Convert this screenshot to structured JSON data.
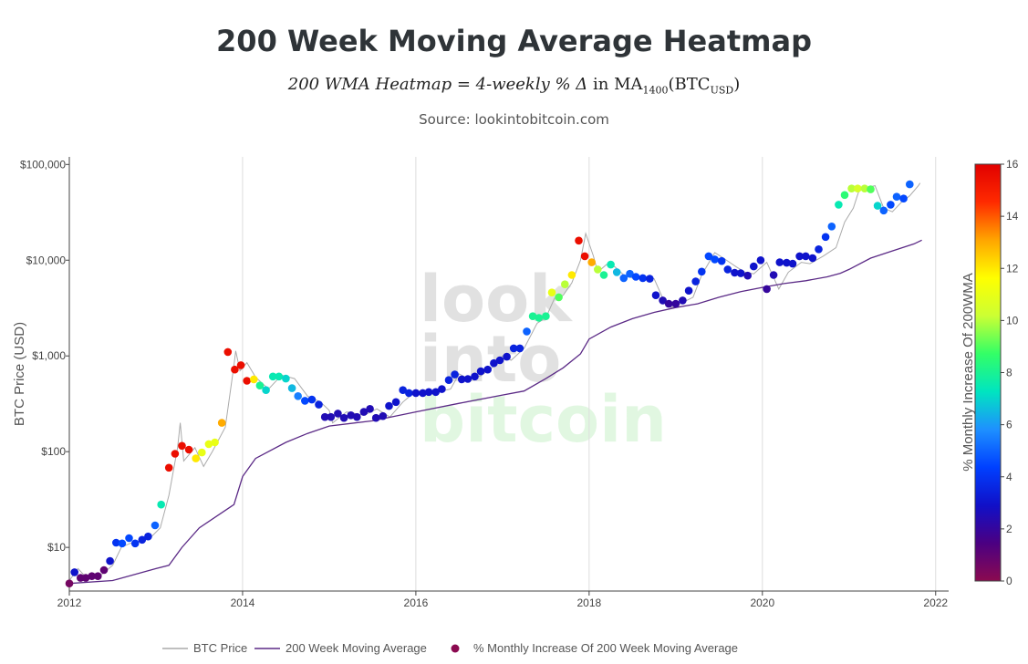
{
  "title": "200 Week Moving Average Heatmap",
  "formula": {
    "lhs": "200 WMA Heatmap",
    "eq": " = ",
    "rhs_italic": "4-weekly % Δ",
    "in_text": " in MA",
    "ma_sub": "1400",
    "paren_open": "(BTC",
    "btc_sub": "USD",
    "paren_close": ")"
  },
  "source": "Source: lookintobitcoin.com",
  "watermark": [
    "look",
    "into",
    "bitcoin"
  ],
  "chart_data": {
    "type": "scatter",
    "ylabel": "BTC Price (USD)",
    "y_scale": "log",
    "ylim": [
      3.5,
      120000
    ],
    "xlim": [
      2012.0,
      2022.15
    ],
    "x_ticks": [
      2012,
      2014,
      2016,
      2018,
      2020,
      2022
    ],
    "x_tick_labels": [
      "2012",
      "2014",
      "2016",
      "2018",
      "2020",
      "2022"
    ],
    "y_ticks": [
      10,
      100,
      1000,
      10000,
      100000
    ],
    "y_tick_labels": [
      "$10",
      "$100",
      "$1,000",
      "$10,000",
      "$100,000"
    ],
    "grid": "vertical",
    "colorbar": {
      "title": "% Monthly Increase Of 200WMA",
      "range": [
        0,
        16
      ],
      "ticks": [
        0,
        2,
        4,
        6,
        8,
        10,
        12,
        14,
        16
      ],
      "colors": [
        "#8b0a50",
        "#4b0082",
        "#1010c8",
        "#0040ff",
        "#1e90ff",
        "#00e5c0",
        "#33ff66",
        "#ccff33",
        "#ffff00",
        "#ffa500",
        "#ff2a00",
        "#e10000"
      ]
    },
    "legend": {
      "position": "bottom",
      "items": [
        {
          "name": "BTC Price",
          "color": "#aaaaaa",
          "kind": "line"
        },
        {
          "name": "200 Week Moving Average",
          "color": "#5b2a86",
          "kind": "line"
        },
        {
          "name": "% Monthly Increase Of 200 Week Moving Average",
          "color": "#8b0a50",
          "kind": "dot"
        }
      ]
    },
    "series": [
      {
        "name": "BTC Price",
        "color": "#aaaaaa",
        "points": [
          [
            2012.0,
            4.5
          ],
          [
            2012.1,
            6
          ],
          [
            2012.2,
            4.8
          ],
          [
            2012.35,
            5
          ],
          [
            2012.5,
            6.5
          ],
          [
            2012.6,
            10
          ],
          [
            2012.7,
            11
          ],
          [
            2012.8,
            11.5
          ],
          [
            2012.95,
            13
          ],
          [
            2013.05,
            16
          ],
          [
            2013.15,
            35
          ],
          [
            2013.25,
            110
          ],
          [
            2013.28,
            200
          ],
          [
            2013.32,
            80
          ],
          [
            2013.45,
            110
          ],
          [
            2013.55,
            70
          ],
          [
            2013.65,
            100
          ],
          [
            2013.8,
            180
          ],
          [
            2013.9,
            800
          ],
          [
            2013.92,
            1130
          ],
          [
            2013.97,
            700
          ],
          [
            2014.05,
            850
          ],
          [
            2014.15,
            600
          ],
          [
            2014.3,
            450
          ],
          [
            2014.45,
            630
          ],
          [
            2014.6,
            580
          ],
          [
            2014.75,
            380
          ],
          [
            2014.9,
            330
          ],
          [
            2015.0,
            270
          ],
          [
            2015.04,
            200
          ],
          [
            2015.2,
            260
          ],
          [
            2015.4,
            240
          ],
          [
            2015.55,
            280
          ],
          [
            2015.7,
            230
          ],
          [
            2015.85,
            330
          ],
          [
            2016.0,
            430
          ],
          [
            2016.2,
            410
          ],
          [
            2016.4,
            450
          ],
          [
            2016.5,
            650
          ],
          [
            2016.6,
            580
          ],
          [
            2016.75,
            620
          ],
          [
            2016.9,
            780
          ],
          [
            2017.0,
            1000
          ],
          [
            2017.1,
            900
          ],
          [
            2017.25,
            1200
          ],
          [
            2017.4,
            2200
          ],
          [
            2017.5,
            2500
          ],
          [
            2017.6,
            4000
          ],
          [
            2017.7,
            4300
          ],
          [
            2017.8,
            5800
          ],
          [
            2017.9,
            10000
          ],
          [
            2017.96,
            19000
          ],
          [
            2018.05,
            11000
          ],
          [
            2018.1,
            7500
          ],
          [
            2018.2,
            9000
          ],
          [
            2018.3,
            8500
          ],
          [
            2018.4,
            7000
          ],
          [
            2018.5,
            6500
          ],
          [
            2018.6,
            6800
          ],
          [
            2018.75,
            6400
          ],
          [
            2018.85,
            4000
          ],
          [
            2018.95,
            3200
          ],
          [
            2019.05,
            3500
          ],
          [
            2019.2,
            4100
          ],
          [
            2019.3,
            7000
          ],
          [
            2019.45,
            12000
          ],
          [
            2019.55,
            10500
          ],
          [
            2019.7,
            8500
          ],
          [
            2019.8,
            7500
          ],
          [
            2019.9,
            7200
          ],
          [
            2020.05,
            9500
          ],
          [
            2020.19,
            5000
          ],
          [
            2020.3,
            7500
          ],
          [
            2020.45,
            9500
          ],
          [
            2020.55,
            9200
          ],
          [
            2020.7,
            11000
          ],
          [
            2020.85,
            13500
          ],
          [
            2020.95,
            25000
          ],
          [
            2021.05,
            35000
          ],
          [
            2021.12,
            55000
          ],
          [
            2021.3,
            60000
          ],
          [
            2021.4,
            35000
          ],
          [
            2021.5,
            32000
          ],
          [
            2021.6,
            40000
          ],
          [
            2021.7,
            47000
          ],
          [
            2021.8,
            60000
          ],
          [
            2021.82,
            64000
          ]
        ]
      },
      {
        "name": "200 Week Moving Average",
        "color": "#5b2a86",
        "points": [
          [
            2012.0,
            4.2
          ],
          [
            2012.5,
            4.5
          ],
          [
            2013.0,
            6.0
          ],
          [
            2013.15,
            6.5
          ],
          [
            2013.3,
            10
          ],
          [
            2013.5,
            16
          ],
          [
            2013.9,
            28
          ],
          [
            2014.0,
            55
          ],
          [
            2014.15,
            85
          ],
          [
            2014.5,
            125
          ],
          [
            2014.75,
            155
          ],
          [
            2015.0,
            185
          ],
          [
            2015.5,
            210
          ],
          [
            2016.0,
            260
          ],
          [
            2016.5,
            320
          ],
          [
            2017.0,
            390
          ],
          [
            2017.25,
            430
          ],
          [
            2017.5,
            580
          ],
          [
            2017.7,
            750
          ],
          [
            2017.9,
            1050
          ],
          [
            2018.0,
            1500
          ],
          [
            2018.25,
            2000
          ],
          [
            2018.5,
            2450
          ],
          [
            2018.75,
            2850
          ],
          [
            2019.0,
            3200
          ],
          [
            2019.25,
            3500
          ],
          [
            2019.5,
            4100
          ],
          [
            2019.75,
            4700
          ],
          [
            2020.0,
            5200
          ],
          [
            2020.25,
            5700
          ],
          [
            2020.5,
            6100
          ],
          [
            2020.75,
            6700
          ],
          [
            2020.9,
            7300
          ],
          [
            2021.0,
            8000
          ],
          [
            2021.25,
            10500
          ],
          [
            2021.5,
            12500
          ],
          [
            2021.75,
            14800
          ],
          [
            2021.84,
            16200
          ]
        ]
      }
    ],
    "heat_points": [
      [
        2012.0,
        4.2,
        0.5
      ],
      [
        2012.06,
        5.5,
        3
      ],
      [
        2012.13,
        4.8,
        1
      ],
      [
        2012.19,
        4.8,
        1
      ],
      [
        2012.26,
        5,
        1
      ],
      [
        2012.33,
        5,
        1
      ],
      [
        2012.4,
        5.8,
        1
      ],
      [
        2012.47,
        7.2,
        3
      ],
      [
        2012.54,
        11.2,
        4
      ],
      [
        2012.61,
        11,
        4.5
      ],
      [
        2012.69,
        12.5,
        4.5
      ],
      [
        2012.76,
        11,
        4
      ],
      [
        2012.84,
        12,
        3.5
      ],
      [
        2012.91,
        13,
        3.5
      ],
      [
        2012.99,
        17,
        5
      ],
      [
        2013.06,
        28,
        7.5
      ],
      [
        2013.15,
        68,
        15.5
      ],
      [
        2013.22,
        95,
        15.5
      ],
      [
        2013.3,
        115,
        15.5
      ],
      [
        2013.38,
        105,
        15.5
      ],
      [
        2013.46,
        85,
        12
      ],
      [
        2013.53,
        98,
        11
      ],
      [
        2013.61,
        120,
        11
      ],
      [
        2013.68,
        125,
        11
      ],
      [
        2013.76,
        200,
        13
      ],
      [
        2013.83,
        1100,
        15.5
      ],
      [
        2013.91,
        720,
        15.5
      ],
      [
        2013.98,
        800,
        15.5
      ],
      [
        2014.05,
        550,
        15.5
      ],
      [
        2014.13,
        570,
        12
      ],
      [
        2014.2,
        490,
        8
      ],
      [
        2014.27,
        440,
        7
      ],
      [
        2014.35,
        610,
        7.5
      ],
      [
        2014.42,
        610,
        7.5
      ],
      [
        2014.5,
        580,
        7
      ],
      [
        2014.57,
        460,
        6.5
      ],
      [
        2014.64,
        380,
        5.5
      ],
      [
        2014.72,
        340,
        4.5
      ],
      [
        2014.8,
        350,
        4
      ],
      [
        2014.88,
        310,
        3.5
      ],
      [
        2014.95,
        230,
        2.5
      ],
      [
        2015.02,
        230,
        2.5
      ],
      [
        2015.1,
        250,
        2.5
      ],
      [
        2015.17,
        225,
        2.5
      ],
      [
        2015.25,
        240,
        2.5
      ],
      [
        2015.32,
        230,
        2.5
      ],
      [
        2015.4,
        260,
        2.5
      ],
      [
        2015.47,
        280,
        2.5
      ],
      [
        2015.54,
        225,
        2.5
      ],
      [
        2015.62,
        235,
        2.5
      ],
      [
        2015.69,
        300,
        3
      ],
      [
        2015.77,
        330,
        3
      ],
      [
        2015.85,
        440,
        3.5
      ],
      [
        2015.92,
        410,
        3.5
      ],
      [
        2016.0,
        410,
        3
      ],
      [
        2016.08,
        410,
        3
      ],
      [
        2016.15,
        420,
        3
      ],
      [
        2016.23,
        420,
        3
      ],
      [
        2016.3,
        450,
        3
      ],
      [
        2016.38,
        560,
        3.5
      ],
      [
        2016.45,
        640,
        3.5
      ],
      [
        2016.53,
        570,
        3
      ],
      [
        2016.6,
        575,
        3
      ],
      [
        2016.68,
        610,
        3
      ],
      [
        2016.75,
        690,
        3
      ],
      [
        2016.83,
        720,
        3
      ],
      [
        2016.9,
        840,
        3
      ],
      [
        2016.97,
        900,
        3
      ],
      [
        2017.05,
        980,
        3
      ],
      [
        2017.13,
        1200,
        3.5
      ],
      [
        2017.2,
        1200,
        3.5
      ],
      [
        2017.28,
        1800,
        5
      ],
      [
        2017.35,
        2600,
        8
      ],
      [
        2017.42,
        2500,
        8
      ],
      [
        2017.5,
        2600,
        8
      ],
      [
        2017.57,
        4600,
        11
      ],
      [
        2017.65,
        4100,
        9
      ],
      [
        2017.72,
        5600,
        10
      ],
      [
        2017.8,
        7000,
        12
      ],
      [
        2017.88,
        16000,
        15.5
      ],
      [
        2017.95,
        11000,
        15.5
      ],
      [
        2018.03,
        9500,
        13
      ],
      [
        2018.1,
        8000,
        10
      ],
      [
        2018.17,
        7000,
        8
      ],
      [
        2018.25,
        9000,
        7.5
      ],
      [
        2018.32,
        7500,
        6.5
      ],
      [
        2018.4,
        6500,
        5
      ],
      [
        2018.47,
        7200,
        5
      ],
      [
        2018.54,
        6700,
        4.5
      ],
      [
        2018.62,
        6500,
        4
      ],
      [
        2018.7,
        6400,
        3.5
      ],
      [
        2018.77,
        4300,
        3
      ],
      [
        2018.85,
        3800,
        2.5
      ],
      [
        2018.92,
        3500,
        2
      ],
      [
        2019.0,
        3500,
        2
      ],
      [
        2019.08,
        3800,
        2.5
      ],
      [
        2019.15,
        4800,
        3
      ],
      [
        2019.23,
        6000,
        3.5
      ],
      [
        2019.3,
        7600,
        4
      ],
      [
        2019.38,
        11000,
        4.5
      ],
      [
        2019.45,
        10200,
        4.5
      ],
      [
        2019.53,
        9800,
        4
      ],
      [
        2019.6,
        8000,
        3.5
      ],
      [
        2019.68,
        7400,
        3
      ],
      [
        2019.75,
        7300,
        3
      ],
      [
        2019.83,
        6900,
        2.5
      ],
      [
        2019.9,
        8600,
        3
      ],
      [
        2019.98,
        10000,
        3
      ],
      [
        2020.05,
        5000,
        2
      ],
      [
        2020.13,
        7000,
        2.5
      ],
      [
        2020.2,
        9500,
        3
      ],
      [
        2020.28,
        9400,
        3
      ],
      [
        2020.35,
        9200,
        3
      ],
      [
        2020.43,
        11000,
        3
      ],
      [
        2020.5,
        11000,
        3
      ],
      [
        2020.58,
        10500,
        3
      ],
      [
        2020.65,
        13000,
        3.5
      ],
      [
        2020.73,
        17500,
        4
      ],
      [
        2020.8,
        22500,
        5
      ],
      [
        2020.88,
        38000,
        7.5
      ],
      [
        2020.95,
        48000,
        8.5
      ],
      [
        2021.03,
        56000,
        10
      ],
      [
        2021.1,
        56000,
        10.5
      ],
      [
        2021.18,
        56000,
        10
      ],
      [
        2021.25,
        55000,
        9
      ],
      [
        2021.33,
        37000,
        7
      ],
      [
        2021.4,
        33000,
        5
      ],
      [
        2021.48,
        38000,
        4.5
      ],
      [
        2021.55,
        46000,
        5
      ],
      [
        2021.63,
        44000,
        4.5
      ],
      [
        2021.7,
        62000,
        5
      ]
    ]
  }
}
